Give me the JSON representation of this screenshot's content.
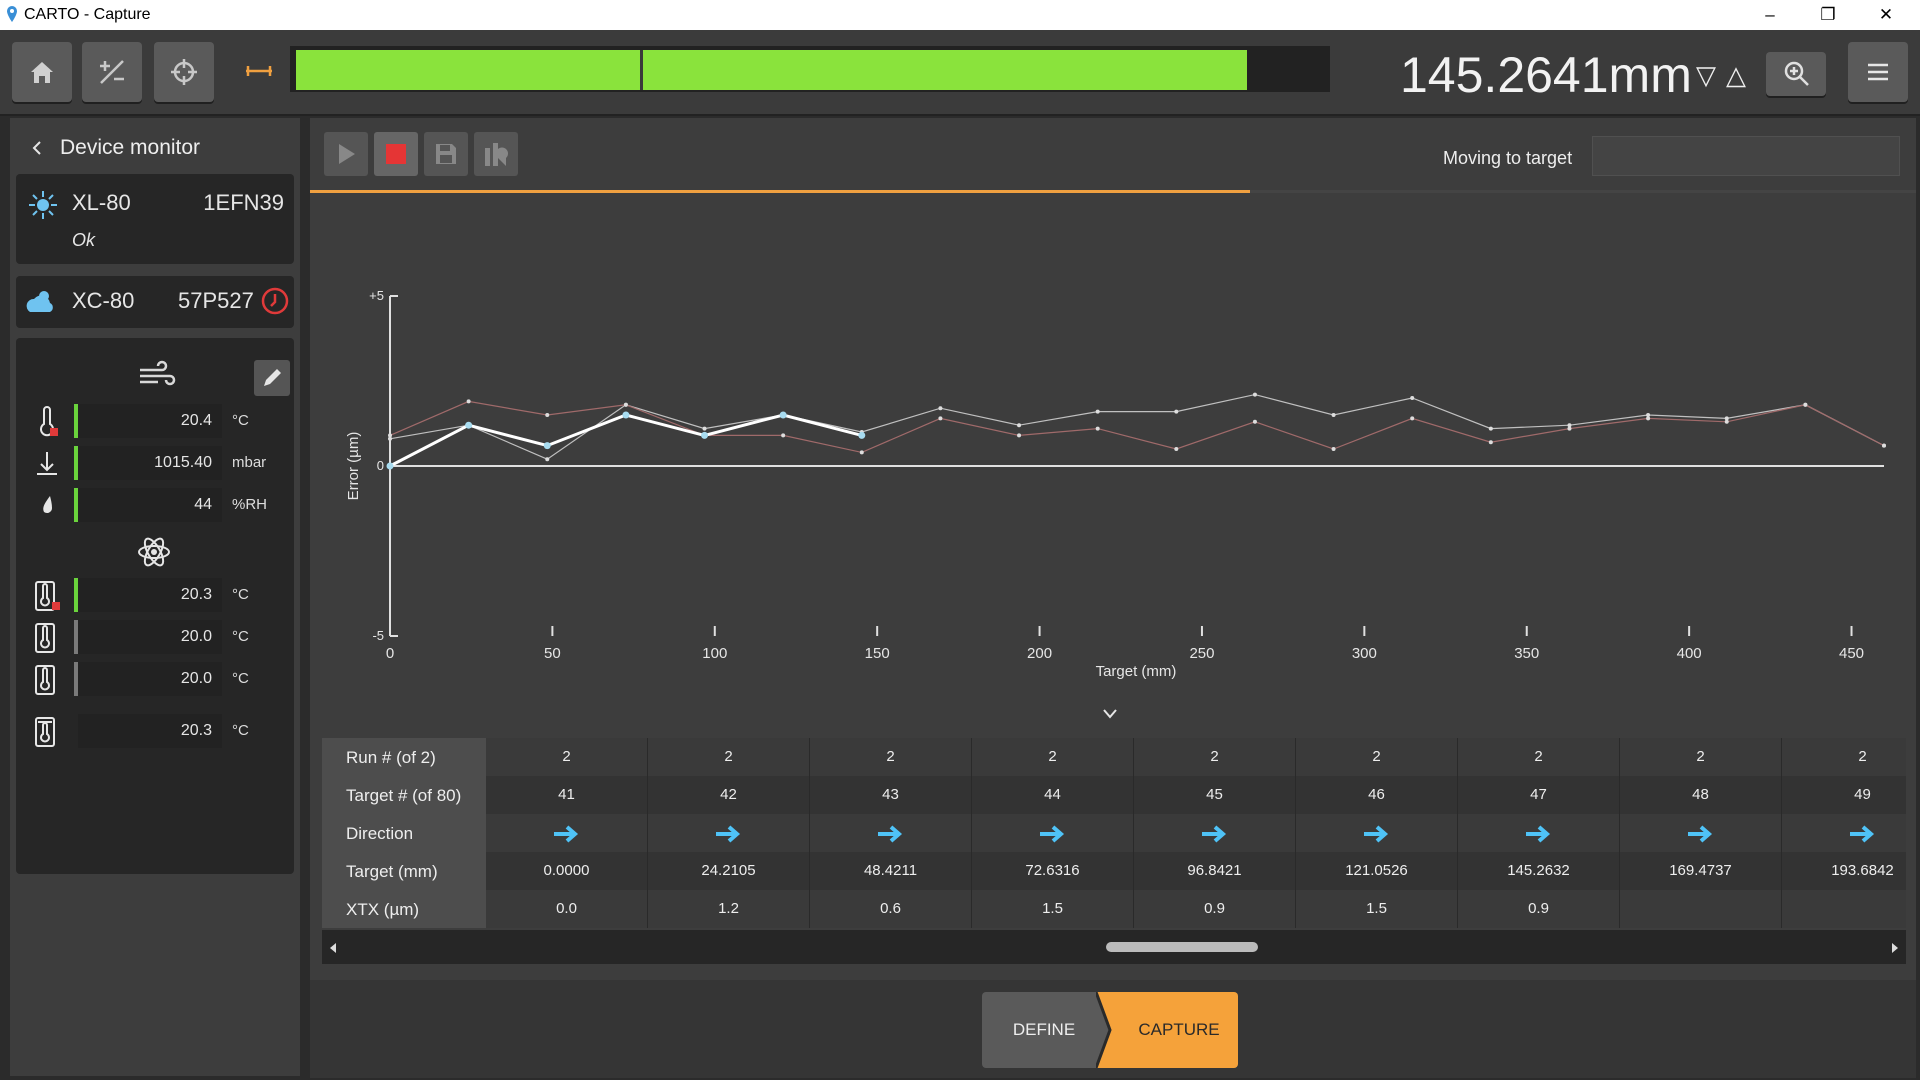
{
  "window": {
    "title": "CARTO - Capture"
  },
  "toolbar": {
    "reading": "145.2641mm",
    "progress": 0.925,
    "progress_marker": 0.335
  },
  "device_monitor": {
    "title": "Device monitor",
    "laser": {
      "model": "XL-80",
      "serial": "1EFN39",
      "status": "Ok"
    },
    "compensator": {
      "model": "XC-80",
      "serial": "57P527"
    },
    "air": [
      {
        "value": "20.4",
        "unit": "°C"
      },
      {
        "value": "1015.40",
        "unit": "mbar"
      },
      {
        "value": "44",
        "unit": "%RH"
      }
    ],
    "material": [
      {
        "value": "20.3",
        "unit": "°C"
      },
      {
        "value": "20.0",
        "unit": "°C"
      },
      {
        "value": "20.0",
        "unit": "°C"
      },
      {
        "value": "20.3",
        "unit": "°C"
      }
    ]
  },
  "status": {
    "label": "Moving to target"
  },
  "chart_data": {
    "type": "line",
    "xlabel": "Target (mm)",
    "ylabel": "Error (µm)",
    "xlim": [
      0,
      460
    ],
    "ylim": [
      -5,
      5
    ],
    "x_ticks": [
      "0",
      "50",
      "100",
      "150",
      "200",
      "250",
      "300",
      "350",
      "400",
      "450"
    ],
    "y_ticks": [
      "+5",
      "0",
      "-5"
    ],
    "series": [
      {
        "color": "#c0c0c0",
        "x": [
          0,
          24.2105,
          48.4211,
          72.6316,
          96.8421,
          121.0526,
          145.2632,
          169.4737,
          193.6842,
          217.8947,
          242.1053,
          266.3158,
          290.5263,
          314.7368,
          338.9474,
          363.1579,
          387.3684,
          411.5789,
          435.7895,
          460
        ],
        "y": [
          0.8,
          1.2,
          0.2,
          1.8,
          1.1,
          1.5,
          1.0,
          1.7,
          1.2,
          1.6,
          1.6,
          2.1,
          1.5,
          2.0,
          1.1,
          1.2,
          1.5,
          1.4,
          1.8,
          0.6
        ]
      },
      {
        "color": "#a06a6a",
        "x": [
          0,
          24.2105,
          48.4211,
          72.6316,
          96.8421,
          121.0526,
          145.2632,
          169.4737,
          193.6842,
          217.8947,
          242.1053,
          266.3158,
          290.5263,
          314.7368,
          338.9474,
          363.1579,
          387.3684,
          411.5789,
          435.7895,
          460
        ],
        "y": [
          0.9,
          1.9,
          1.5,
          1.8,
          0.9,
          0.9,
          0.4,
          1.4,
          0.9,
          1.1,
          0.5,
          1.3,
          0.5,
          1.4,
          0.7,
          1.1,
          1.4,
          1.3,
          1.8,
          0.6
        ]
      },
      {
        "color": "#ffffff",
        "x": [
          0,
          24.2105,
          48.4211,
          72.6316,
          96.8421,
          121.0526,
          145.2632
        ],
        "y": [
          0.0,
          1.2,
          0.6,
          1.5,
          0.9,
          1.5,
          0.9
        ]
      }
    ]
  },
  "table": {
    "row_headers": [
      "Run # (of 2)",
      "Target # (of 80)",
      "Direction",
      "Target (mm)",
      "XTX (µm)"
    ],
    "columns": [
      {
        "run": "2",
        "target_no": "41",
        "target": "0.0000",
        "xtx": "0.0"
      },
      {
        "run": "2",
        "target_no": "42",
        "target": "24.2105",
        "xtx": "1.2"
      },
      {
        "run": "2",
        "target_no": "43",
        "target": "48.4211",
        "xtx": "0.6"
      },
      {
        "run": "2",
        "target_no": "44",
        "target": "72.6316",
        "xtx": "1.5"
      },
      {
        "run": "2",
        "target_no": "45",
        "target": "96.8421",
        "xtx": "0.9"
      },
      {
        "run": "2",
        "target_no": "46",
        "target": "121.0526",
        "xtx": "1.5"
      },
      {
        "run": "2",
        "target_no": "47",
        "target": "145.2632",
        "xtx": "0.9"
      },
      {
        "run": "2",
        "target_no": "48",
        "target": "169.4737",
        "xtx": ""
      },
      {
        "run": "2",
        "target_no": "49",
        "target": "193.6842",
        "xtx": ""
      }
    ]
  },
  "footer": {
    "define": "DEFINE",
    "capture": "CAPTURE"
  }
}
